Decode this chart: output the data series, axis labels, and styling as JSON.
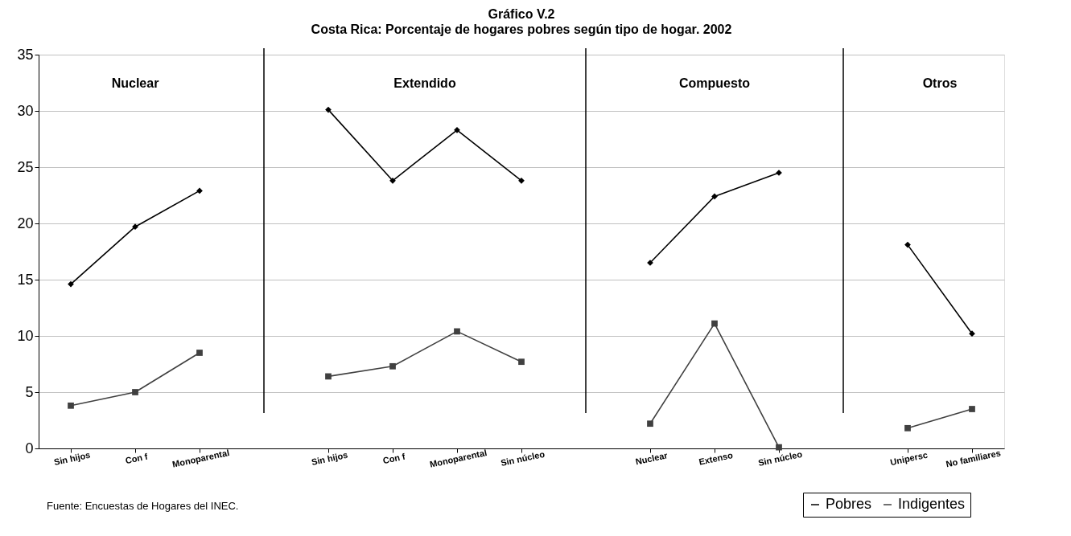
{
  "chart_data": {
    "type": "line",
    "title": "Gráfico V.2",
    "subtitle": "Costa Rica: Porcentaje de hogares pobres según tipo de hogar. 2002",
    "categories": [
      "Sin hijos",
      "Con f",
      "Monoparental",
      null,
      "Sin hijos",
      "Con f",
      "Monoparental",
      "Sin núcleo",
      null,
      "Nuclear",
      "Extenso",
      "Sin núcleo",
      null,
      "Unipersc",
      "No familiares"
    ],
    "series": [
      {
        "name": "Pobres",
        "color": "#000000",
        "marker": "diamond",
        "values": [
          14.6,
          19.7,
          22.9,
          null,
          30.1,
          23.8,
          28.3,
          23.8,
          null,
          16.5,
          22.4,
          24.5,
          null,
          18.1,
          10.2
        ]
      },
      {
        "name": "Indigentes",
        "color": "#404040",
        "marker": "square",
        "values": [
          3.8,
          5.0,
          8.5,
          null,
          6.4,
          7.3,
          10.4,
          7.7,
          null,
          2.2,
          11.1,
          0.1,
          null,
          1.8,
          3.5
        ]
      }
    ],
    "annotations": [
      "Nuclear",
      "Extendido",
      "Compuesto",
      "Otros",
      "Fuente:  Encuestas de Hogares del INEC."
    ],
    "ylim": [
      0,
      35
    ],
    "yticks": [
      0,
      5,
      10,
      15,
      20,
      25,
      30,
      35
    ],
    "grid": "y",
    "legend": "bottom right",
    "line_style": "solid"
  }
}
